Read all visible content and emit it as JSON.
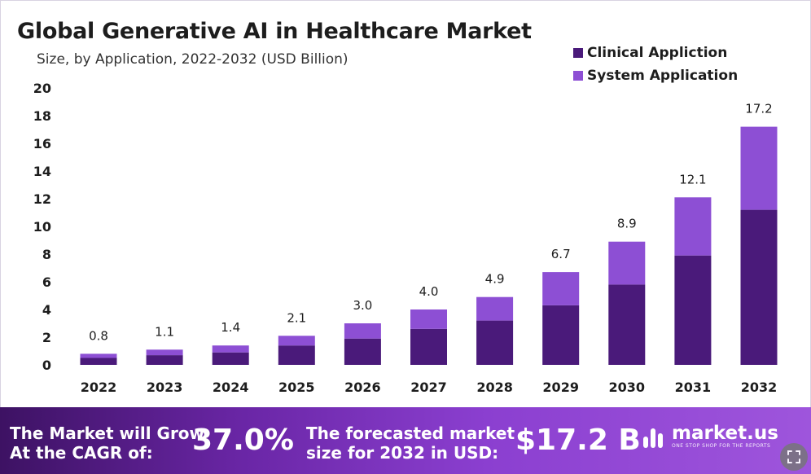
{
  "colors": {
    "clinical": "#4a1a7a",
    "system": "#8d4fd4",
    "text": "#1d1d1d",
    "footer_start": "#3d1263",
    "footer_end": "#9e55dc"
  },
  "chart_data": {
    "type": "bar",
    "stacked": true,
    "title": "Global Generative AI in Healthcare Market",
    "subtitle": "Size, by Application, 2022-2032 (USD Billion)",
    "categories": [
      "2022",
      "2023",
      "2024",
      "2025",
      "2026",
      "2027",
      "2028",
      "2029",
      "2030",
      "2031",
      "2032"
    ],
    "series": [
      {
        "name": "Clinical Appliction",
        "values": [
          0.5,
          0.7,
          0.9,
          1.4,
          1.9,
          2.6,
          3.2,
          4.3,
          5.8,
          7.9,
          11.2
        ]
      },
      {
        "name": "System Application",
        "values": [
          0.3,
          0.4,
          0.5,
          0.7,
          1.1,
          1.4,
          1.7,
          2.4,
          3.1,
          4.2,
          6.0
        ]
      }
    ],
    "totals_labels": [
      "0.8",
      "1.1",
      "1.4",
      "2.1",
      "3.0",
      "4.0",
      "4.9",
      "6.7",
      "8.9",
      "12.1",
      "17.2"
    ],
    "totals": [
      0.8,
      1.1,
      1.4,
      2.1,
      3.0,
      4.0,
      4.9,
      6.7,
      8.9,
      12.1,
      17.2
    ],
    "yticks": [
      "0",
      "2",
      "4",
      "6",
      "8",
      "10",
      "12",
      "14",
      "16",
      "18",
      "20"
    ],
    "ylim": [
      0,
      20
    ],
    "grid": false,
    "legend": "top-right"
  },
  "footer": {
    "cagr_text_line1": "The Market will Grow",
    "cagr_text_line2": "At the CAGR of:",
    "cagr_value": "37.0%",
    "forecast_text_line1": "The forecasted market",
    "forecast_text_line2": "size for 2032 in USD:",
    "forecast_value": "$17.2 B",
    "logo_name": "market.us",
    "logo_tagline": "ONE STOP SHOP FOR THE REPORTS"
  }
}
